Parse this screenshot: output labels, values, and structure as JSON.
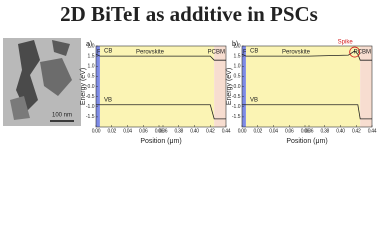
{
  "title": "2D BiTeI as additive in PSCs",
  "image": {
    "scale_label": "100 nm"
  },
  "chart_data": [
    {
      "type": "line",
      "panel": "a)",
      "x_label": "Position (μm)",
      "y_label": "Energy (eV)",
      "xlim": [
        [
          0,
          0.08
        ],
        [
          0.36,
          0.44
        ]
      ],
      "xticks": [
        {
          "value": 0,
          "label": "0.00"
        },
        0.02,
        0.04,
        0.06,
        0.08,
        0.36,
        0.38,
        {
          "value": 0.4,
          "label": "0.40"
        },
        0.42,
        0.44
      ],
      "ylim": [
        -2.0,
        2.0
      ],
      "yticks": [
        {
          "value": 2,
          "label": "2.0"
        },
        1.5,
        {
          "value": 1,
          "label": "1.0"
        },
        0.5,
        {
          "value": 0,
          "label": "0.0"
        },
        -0.5,
        {
          "value": -1,
          "label": "-1.0"
        },
        -1.5
      ],
      "regions": [
        {
          "label": "PTAA",
          "range": [
            0,
            0.005
          ],
          "color": "#7d8ae6"
        },
        {
          "label": "Perovskite",
          "range": [
            0.005,
            0.425
          ],
          "color": "#fbf4b4"
        },
        {
          "label": "PCBM",
          "range": [
            0.425,
            0.44
          ],
          "color": "#f7ddd0"
        }
      ],
      "x": [
        0,
        0.005,
        0.08,
        0.36,
        0.42,
        0.425,
        0.44
      ],
      "series": [
        {
          "name": "CB",
          "color": "#222222",
          "values": [
            1.6,
            1.5,
            1.5,
            1.5,
            1.5,
            1.3,
            1.3
          ]
        },
        {
          "name": "VB",
          "color": "#222222",
          "values": [
            -0.9,
            -0.9,
            -0.9,
            -0.9,
            -0.9,
            -1.6,
            -1.6
          ]
        }
      ]
    },
    {
      "type": "line",
      "panel": "b)",
      "x_label": "Position (μm)",
      "y_label": "Energy (eV)",
      "xlim": [
        [
          0,
          0.08
        ],
        [
          0.36,
          0.44
        ]
      ],
      "xticks": [
        {
          "value": 0,
          "label": "0.00"
        },
        0.02,
        0.04,
        0.06,
        0.08,
        0.36,
        0.38,
        {
          "value": 0.4,
          "label": "0.40"
        },
        0.42,
        0.44
      ],
      "ylim": [
        -2.0,
        2.0
      ],
      "yticks": [
        {
          "value": 2,
          "label": "2.0"
        },
        1.5,
        {
          "value": 1,
          "label": "1.0"
        },
        0.5,
        {
          "value": 0,
          "label": "0.0"
        },
        -0.5,
        {
          "value": -1,
          "label": "-1.0"
        },
        -1.5
      ],
      "regions": [
        {
          "label": "PTAA",
          "range": [
            0,
            0.005
          ],
          "color": "#7d8ae6"
        },
        {
          "label": "Perovskite",
          "range": [
            0.005,
            0.425
          ],
          "color": "#fbf4b4"
        },
        {
          "label": "PCBM",
          "range": [
            0.425,
            0.44
          ],
          "color": "#f7ddd0"
        }
      ],
      "x": [
        0,
        0.005,
        0.08,
        0.36,
        0.41,
        0.418,
        0.422,
        0.425,
        0.44
      ],
      "series": [
        {
          "name": "CB",
          "color": "#222222",
          "values": [
            1.6,
            1.5,
            1.5,
            1.5,
            1.55,
            1.75,
            1.6,
            1.3,
            1.3
          ]
        },
        {
          "name": "VB",
          "color": "#222222",
          "values": [
            -0.9,
            -0.9,
            -0.9,
            -0.9,
            -0.9,
            -0.9,
            -0.9,
            -1.6,
            -1.6
          ]
        }
      ],
      "annotations": [
        {
          "text": "Spike",
          "color": "#d42020"
        }
      ]
    }
  ]
}
